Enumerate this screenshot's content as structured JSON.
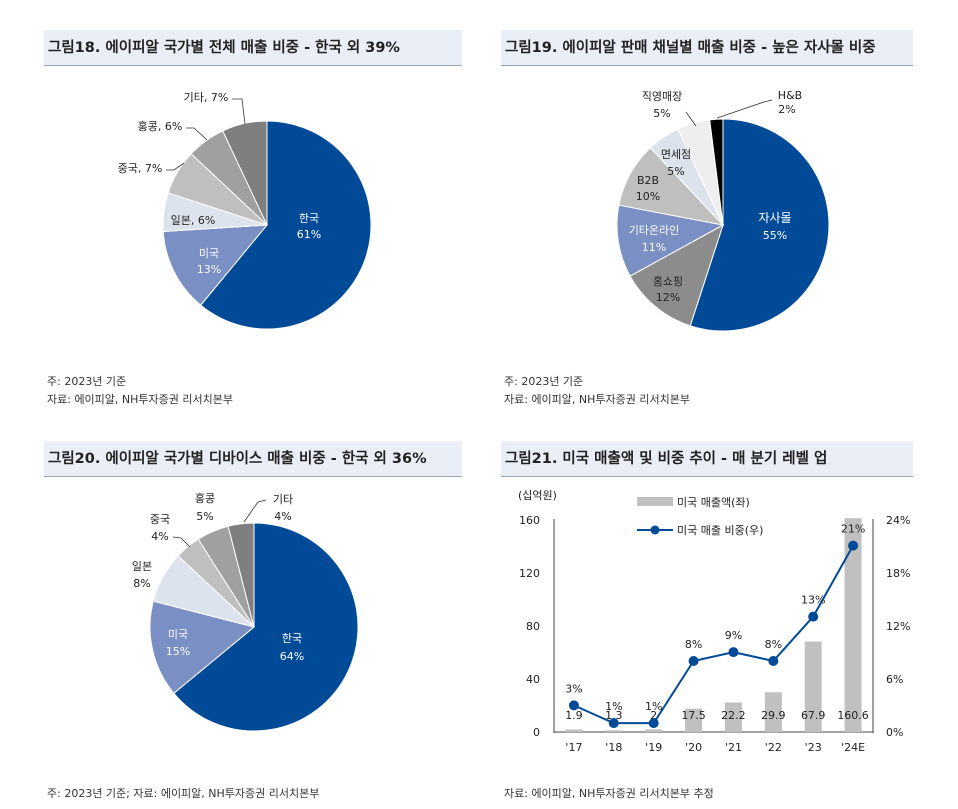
{
  "panels": [
    {
      "title": "그림18. 에이피알 국가별 전체 매출 비중 - 한국 외 39%",
      "notes": [
        "주: 2023년 기준",
        "자료: 에이피알, NH투자증권 리서치본부"
      ]
    },
    {
      "title": "그림19. 에이피알 판매 채널별 매출 비중 - 높은 자사몰 비중",
      "notes": [
        "주: 2023년 기준",
        "자료: 에이피알, NH투자증권 리서치본부"
      ]
    },
    {
      "title": "그림20. 에이피알 국가별 디바이스 매출 비중 - 한국 외 36%",
      "notes": [
        "주: 2023년 기준; 자료: 에이피알, NH투자증권 리서치본부"
      ]
    },
    {
      "title": "그림21. 미국 매출액 및 비중 추이 - 매 분기 레벨 업",
      "notes": [
        "자료: 에이피알, NH투자증권 리서치본부 추정"
      ]
    }
  ],
  "chart_data": [
    {
      "type": "pie",
      "title": "그림18. 에이피알 국가별 전체 매출 비중 - 한국 외 39%",
      "slices": [
        {
          "label": "한국",
          "value": 61,
          "value_label": "61%",
          "color": "#004a98"
        },
        {
          "label": "미국",
          "value": 13,
          "value_label": "13%",
          "color": "#7a8fc4"
        },
        {
          "label": "일본",
          "value": 6,
          "value_label": "6%",
          "color": "#dce3ec"
        },
        {
          "label": "중국",
          "value": 7,
          "value_label": "7%",
          "color": "#bfbfbf"
        },
        {
          "label": "홍콩",
          "value": 6,
          "value_label": "6%",
          "color": "#a0a0a0"
        },
        {
          "label": "기타",
          "value": 7,
          "value_label": "7%",
          "color": "#7f7f7f"
        }
      ]
    },
    {
      "type": "pie",
      "title": "그림19. 에이피알 판매 채널별 매출 비중 - 높은 자사몰 비중",
      "slices": [
        {
          "label": "자사몰",
          "value": 55,
          "value_label": "55%",
          "color": "#004a98"
        },
        {
          "label": "홈쇼핑",
          "value": 12,
          "value_label": "12%",
          "color": "#8c8c8c"
        },
        {
          "label": "기타온라인",
          "value": 11,
          "value_label": "11%",
          "color": "#7a8fc4"
        },
        {
          "label": "B2B",
          "value": 10,
          "value_label": "10%",
          "color": "#bfbfbf"
        },
        {
          "label": "면세점",
          "value": 5,
          "value_label": "5%",
          "color": "#dce3ec"
        },
        {
          "label": "직영매장",
          "value": 5,
          "value_label": "5%",
          "color": "#eeeeee"
        },
        {
          "label": "H&B",
          "value": 2,
          "value_label": "2%",
          "color": "#000000"
        }
      ]
    },
    {
      "type": "pie",
      "title": "그림20. 에이피알 국가별 디바이스 매출 비중 - 한국 외 36%",
      "slices": [
        {
          "label": "한국",
          "value": 64,
          "value_label": "64%",
          "color": "#004a98"
        },
        {
          "label": "미국",
          "value": 15,
          "value_label": "15%",
          "color": "#7a8fc4"
        },
        {
          "label": "일본",
          "value": 8,
          "value_label": "8%",
          "color": "#dce3ec"
        },
        {
          "label": "중국",
          "value": 4,
          "value_label": "4%",
          "color": "#bfbfbf"
        },
        {
          "label": "홍콩",
          "value": 5,
          "value_label": "5%",
          "color": "#a0a0a0"
        },
        {
          "label": "기타",
          "value": 4,
          "value_label": "4%",
          "color": "#7f7f7f"
        }
      ]
    },
    {
      "type": "bar",
      "title": "그림21. 미국 매출액 및 비중 추이 - 매 분기 레벨 업",
      "categories": [
        "'17",
        "'18",
        "'19",
        "'20",
        "'21",
        "'22",
        "'23",
        "'24E"
      ],
      "ylabel": "(십억원)",
      "ylim": [
        0,
        160
      ],
      "yticks": [
        "0",
        "40",
        "80",
        "120",
        "160"
      ],
      "y2lim": [
        0,
        24
      ],
      "y2ticks": [
        "0%",
        "6%",
        "12%",
        "18%",
        "24%"
      ],
      "legend": [
        "미국 매출액(좌)",
        "미국 매출 비중(우)"
      ],
      "series": [
        {
          "name": "미국 매출액(좌)",
          "type": "bar",
          "values": [
            1.9,
            1.3,
            2,
            17.5,
            22.2,
            29.9,
            67.9,
            160.6
          ],
          "labels": [
            "1.9",
            "1.3",
            "2",
            "17.5",
            "22.2",
            "29.9",
            "67.9",
            "160.6"
          ],
          "color": "#c0c0c0"
        },
        {
          "name": "미국 매출 비중(우)",
          "type": "line",
          "values": [
            3,
            1,
            1,
            8,
            9,
            8,
            13,
            21
          ],
          "labels": [
            "3%",
            "1%",
            "1%",
            "8%",
            "9%",
            "8%",
            "13%",
            "21%"
          ],
          "color": "#004a98"
        }
      ]
    }
  ]
}
